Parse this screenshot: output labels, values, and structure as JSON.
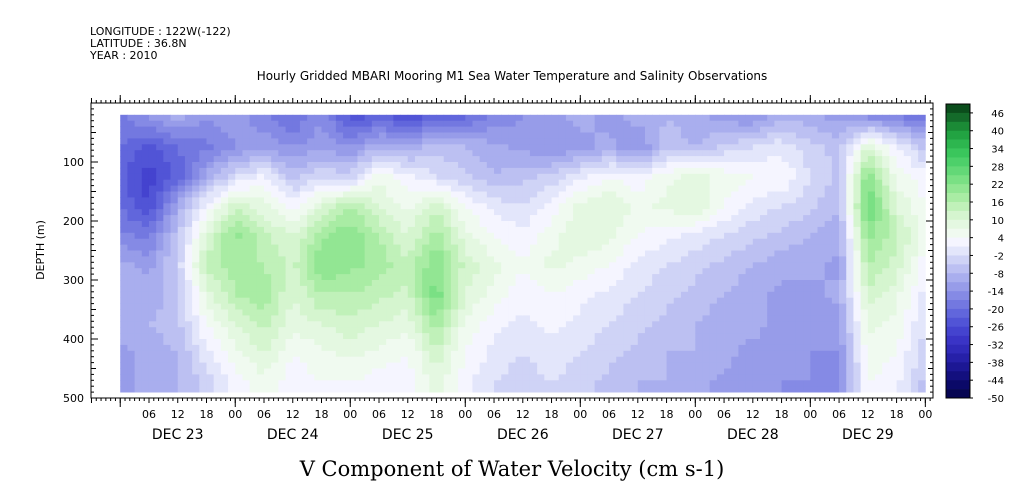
{
  "header": {
    "longitude": "LONGITUDE : 122W(-122)",
    "latitude": "LATITUDE : 36.8N",
    "year": "YEAR : 2010"
  },
  "chart_data": {
    "type": "heatmap",
    "title": "Hourly Gridded MBARI Mooring M1 Sea Water Temperature and Salinity Observations",
    "xlabel": "",
    "ylabel": "DEPTH (m)",
    "bottom_label": "V Component of Water Velocity (cm s-1)",
    "x_range_hours": [
      0,
      168
    ],
    "y_range_m": [
      500,
      0
    ],
    "y_ticks": [
      "100",
      "200",
      "300",
      "400",
      "500"
    ],
    "hour_ticks": [
      "06",
      "12",
      "18",
      "00",
      "06",
      "12",
      "18",
      "00",
      "06",
      "12",
      "18",
      "00",
      "06",
      "12",
      "18",
      "00",
      "06",
      "12",
      "18",
      "00",
      "06",
      "12",
      "18",
      "00",
      "06",
      "12",
      "18",
      "00"
    ],
    "day_labels": [
      "DEC 23",
      "DEC 24",
      "DEC 25",
      "DEC 26",
      "DEC 27",
      "DEC 28",
      "DEC 29"
    ],
    "colorbar": {
      "labels": [
        "46",
        "40",
        "34",
        "28",
        "22",
        "16",
        "10",
        "4",
        "-2",
        "-8",
        "-14",
        "-20",
        "-26",
        "-32",
        "-38",
        "-44",
        "-50"
      ],
      "levels": [
        50,
        46,
        43,
        40,
        37,
        34,
        31,
        28,
        25,
        22,
        19,
        16,
        13,
        10,
        7,
        4,
        1,
        -2,
        -5,
        -8,
        -11,
        -14,
        -17,
        -20,
        -23,
        -26,
        -29,
        -32,
        -35,
        -38,
        -41,
        -44,
        -47,
        -50
      ],
      "colors": [
        "#0b4d1c",
        "#146b2a",
        "#1b8a36",
        "#22a342",
        "#2db64f",
        "#3ac65c",
        "#4dd06a",
        "#63d877",
        "#7ae084",
        "#92e693",
        "#a9eca4",
        "#c0f1b9",
        "#d5f5cf",
        "#e4f8e1",
        "#f0faf0",
        "#f5f5ff",
        "#e3e6fb",
        "#cfd3f6",
        "#bcc0f2",
        "#a9aeee",
        "#979ce9",
        "#858ae5",
        "#7378e0",
        "#6166dc",
        "#5154d6",
        "#4443cf",
        "#3a34c6",
        "#302ab9",
        "#2620a8",
        "#1c1794",
        "#130f7e",
        "#0b0968",
        "#060552"
      ]
    },
    "description_field": {
      "profile_hours": [
        0,
        6,
        12,
        18,
        24,
        30,
        36,
        42,
        48,
        54,
        60,
        66,
        72,
        78,
        84,
        90,
        96,
        102,
        108,
        114,
        120,
        126,
        132,
        138,
        144,
        150,
        156,
        162,
        168
      ],
      "depth_levels_m": [
        25,
        75,
        125,
        175,
        225,
        275,
        325,
        375,
        425,
        475
      ],
      "values_cm_s": [
        [
          -18,
          -14,
          -10,
          -14,
          -12,
          -16,
          -20,
          -14,
          -24,
          -22,
          -24,
          -22,
          -20,
          -16,
          -14,
          -12,
          -10,
          -12,
          -10,
          -8,
          -10,
          -12,
          -14,
          -8,
          -10,
          -12,
          -14,
          -16,
          -20
        ],
        [
          -20,
          -24,
          -20,
          -18,
          -14,
          -12,
          -14,
          -12,
          -14,
          -8,
          -10,
          -6,
          -8,
          -10,
          -12,
          -14,
          -12,
          -10,
          -14,
          -6,
          -8,
          -4,
          -2,
          0,
          -4,
          -6,
          10,
          2,
          -6
        ],
        [
          -22,
          -28,
          -22,
          -10,
          -2,
          2,
          -6,
          -2,
          -4,
          6,
          2,
          -2,
          -4,
          -8,
          -6,
          -4,
          0,
          4,
          2,
          6,
          8,
          6,
          4,
          4,
          -2,
          -6,
          22,
          6,
          2
        ],
        [
          -20,
          -26,
          -10,
          2,
          12,
          8,
          2,
          10,
          16,
          10,
          6,
          12,
          4,
          0,
          -2,
          2,
          8,
          10,
          6,
          8,
          10,
          4,
          0,
          -2,
          -4,
          -8,
          26,
          10,
          4
        ],
        [
          -16,
          -18,
          -6,
          10,
          20,
          14,
          10,
          18,
          22,
          16,
          10,
          18,
          8,
          4,
          2,
          6,
          10,
          8,
          4,
          2,
          0,
          -2,
          -4,
          -6,
          -8,
          -10,
          20,
          14,
          6
        ],
        [
          -10,
          -12,
          -4,
          14,
          18,
          16,
          12,
          22,
          20,
          18,
          14,
          22,
          12,
          8,
          4,
          8,
          6,
          4,
          0,
          -2,
          -4,
          -6,
          -8,
          -10,
          -10,
          -12,
          16,
          12,
          2
        ],
        [
          -8,
          -10,
          -6,
          8,
          16,
          18,
          10,
          16,
          16,
          14,
          12,
          24,
          10,
          6,
          2,
          4,
          2,
          0,
          -2,
          -4,
          -6,
          -8,
          -10,
          -12,
          -12,
          -10,
          12,
          8,
          0
        ],
        [
          -10,
          -8,
          -6,
          4,
          10,
          14,
          8,
          10,
          12,
          10,
          8,
          18,
          6,
          2,
          0,
          2,
          0,
          -2,
          -4,
          -6,
          -8,
          -10,
          -10,
          -12,
          -14,
          -12,
          8,
          6,
          -2
        ],
        [
          -12,
          -10,
          -8,
          0,
          6,
          10,
          4,
          6,
          8,
          6,
          4,
          12,
          4,
          0,
          -2,
          0,
          -2,
          -4,
          -6,
          -8,
          -8,
          -10,
          -12,
          -12,
          -14,
          -14,
          6,
          4,
          -4
        ],
        [
          -12,
          -10,
          -8,
          -4,
          2,
          6,
          2,
          4,
          4,
          2,
          2,
          8,
          2,
          -2,
          -4,
          -2,
          -4,
          -6,
          -8,
          -8,
          -10,
          -12,
          -12,
          -14,
          -14,
          -14,
          4,
          2,
          -6
        ]
      ]
    }
  }
}
